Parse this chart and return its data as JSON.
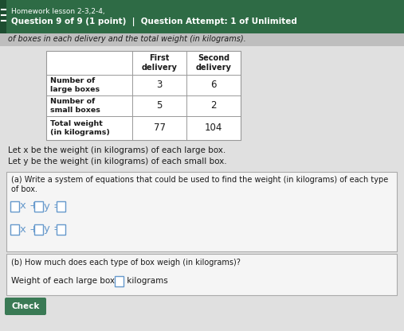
{
  "header_bg": "#2e6b45",
  "header_line1": "Homework lesson 2-3,2-4,",
  "header_line2": "Question 9 of 9 (1 point)  |  Question Attempt: 1 of Unlimited",
  "subheader_text": "of boxes in each delivery and the total weight (in kilograms).",
  "table_col1_header": "First\ndelivery",
  "table_col2_header": "Second\ndelivery",
  "table_rows": [
    [
      "Number of\nlarge boxes",
      "3",
      "6"
    ],
    [
      "Number of\nsmall boxes",
      "5",
      "2"
    ],
    [
      "Total weight\n(in kilograms)",
      "77",
      "104"
    ]
  ],
  "let_x": "Let x be the weight (in kilograms) of each large box.",
  "let_y": "Let y be the weight (in kilograms) of each small box.",
  "part_a_label1": "(a) Write a system of equations that could be used to find the weight (in kilograms) of each type",
  "part_a_label2": "of box.",
  "part_b_label": "(b) How much does each type of box weigh (in kilograms)?",
  "weight_label_pre": "Weight of each large box:  ",
  "weight_label_post": " kilograms",
  "check_btn": "Check",
  "bg_color": "#c8c8c8",
  "content_bg": "#e0e0e0",
  "box_bg": "#f5f5f5",
  "table_bg": "#ffffff",
  "table_border": "#999999",
  "eq_color": "#6699cc",
  "check_btn_color": "#3a7a55",
  "check_btn_text_color": "#ffffff",
  "font_color_dark": "#1a1a1a",
  "font_color_header": "#ffffff",
  "subheader_bg": "#bebebe",
  "left_bar_color": "#555555"
}
